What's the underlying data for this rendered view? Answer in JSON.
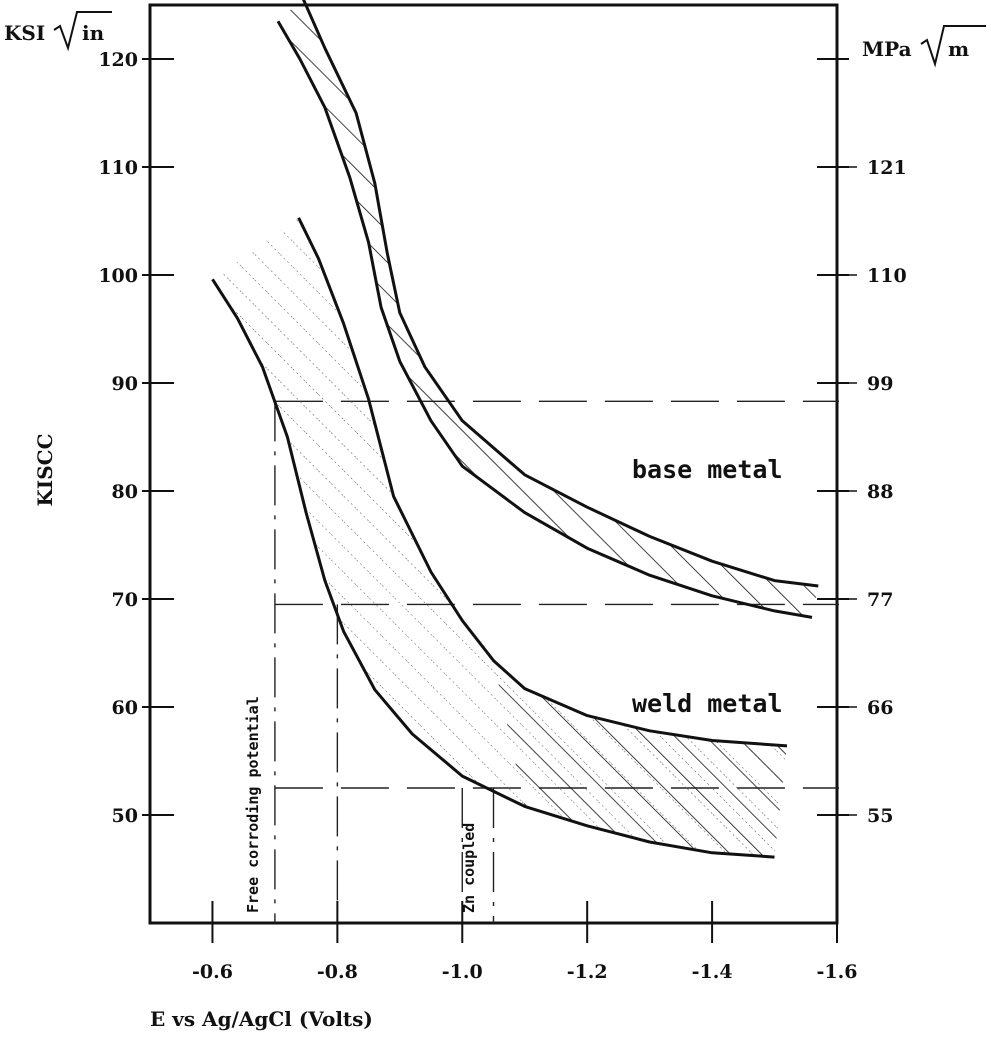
{
  "chart_data": {
    "type": "line",
    "xlabel": "E vs Ag/AgCl (Volts)",
    "ylabel": "KISCC",
    "y_unit_left": "KSI √in",
    "y_unit_right": "MPa √m",
    "xlim": [
      -0.5,
      -1.6
    ],
    "ylim": [
      40,
      125
    ],
    "x_ticks": [
      -0.6,
      -0.8,
      -1.0,
      -1.2,
      -1.4,
      -1.6
    ],
    "x_tick_labels": [
      "-0.6",
      "-0.8",
      "-1.0",
      "-1.2",
      "-1.4",
      "-1.6"
    ],
    "y_ticks_left": [
      50,
      60,
      70,
      80,
      90,
      100,
      110,
      120
    ],
    "y_tick_labels_left": [
      "50",
      "60",
      "70",
      "80",
      "90",
      "100",
      "110",
      "120"
    ],
    "y_ticks_right_labels": [
      "55",
      "66",
      "77",
      "88",
      "99",
      "110",
      "121"
    ],
    "y_ticks_right_positions_ksi": [
      50,
      60,
      70,
      80,
      90,
      100,
      110,
      120
    ],
    "bands": [
      {
        "name": "base metal",
        "upper": [
          [
            -0.745,
            125.6
          ],
          [
            -0.78,
            121
          ],
          [
            -0.83,
            115
          ],
          [
            -0.86,
            108.5
          ],
          [
            -0.88,
            102
          ],
          [
            -0.9,
            96.5
          ],
          [
            -0.94,
            91.5
          ],
          [
            -1.0,
            86.5
          ],
          [
            -1.1,
            81.5
          ],
          [
            -1.2,
            78.5
          ],
          [
            -1.3,
            75.8
          ],
          [
            -1.4,
            73.5
          ],
          [
            -1.5,
            71.7
          ],
          [
            -1.57,
            71.2
          ]
        ],
        "lower": [
          [
            -0.705,
            123.5
          ],
          [
            -0.74,
            120
          ],
          [
            -0.78,
            115.5
          ],
          [
            -0.82,
            109
          ],
          [
            -0.85,
            103
          ],
          [
            -0.87,
            97
          ],
          [
            -0.9,
            92
          ],
          [
            -0.95,
            86.5
          ],
          [
            -1.0,
            82.3
          ],
          [
            -1.1,
            78
          ],
          [
            -1.2,
            74.7
          ],
          [
            -1.3,
            72.2
          ],
          [
            -1.4,
            70.3
          ],
          [
            -1.5,
            68.9
          ],
          [
            -1.56,
            68.3
          ]
        ]
      },
      {
        "name": "weld metal",
        "upper": [
          [
            -0.738,
            105.3
          ],
          [
            -0.77,
            101.5
          ],
          [
            -0.81,
            95.5
          ],
          [
            -0.85,
            88.5
          ],
          [
            -0.89,
            79.5
          ],
          [
            -0.95,
            72.5
          ],
          [
            -1.0,
            68
          ],
          [
            -1.05,
            64.3
          ],
          [
            -1.1,
            61.7
          ],
          [
            -1.2,
            59.2
          ],
          [
            -1.3,
            57.8
          ],
          [
            -1.4,
            56.9
          ],
          [
            -1.52,
            56.4
          ]
        ],
        "lower": [
          [
            -0.6,
            99.6
          ],
          [
            -0.64,
            96
          ],
          [
            -0.68,
            91.5
          ],
          [
            -0.72,
            85
          ],
          [
            -0.75,
            78
          ],
          [
            -0.78,
            71.7
          ],
          [
            -0.81,
            67
          ],
          [
            -0.86,
            61.6
          ],
          [
            -0.92,
            57.5
          ],
          [
            -1.0,
            53.6
          ],
          [
            -1.1,
            50.8
          ],
          [
            -1.2,
            49
          ],
          [
            -1.3,
            47.5
          ],
          [
            -1.4,
            46.5
          ],
          [
            -1.5,
            46.1
          ]
        ]
      }
    ],
    "reference_lines": {
      "horizontal_ksi": [
        88.3,
        69.5,
        52.5
      ],
      "vertical_volts": [
        -0.7,
        -0.8,
        -1.0,
        -1.05
      ]
    },
    "annotations": {
      "base_metal": "base metal",
      "weld_metal": "weld metal",
      "free_corroding": "Free corroding potential",
      "zn_coupled": "Zn coupled"
    }
  }
}
